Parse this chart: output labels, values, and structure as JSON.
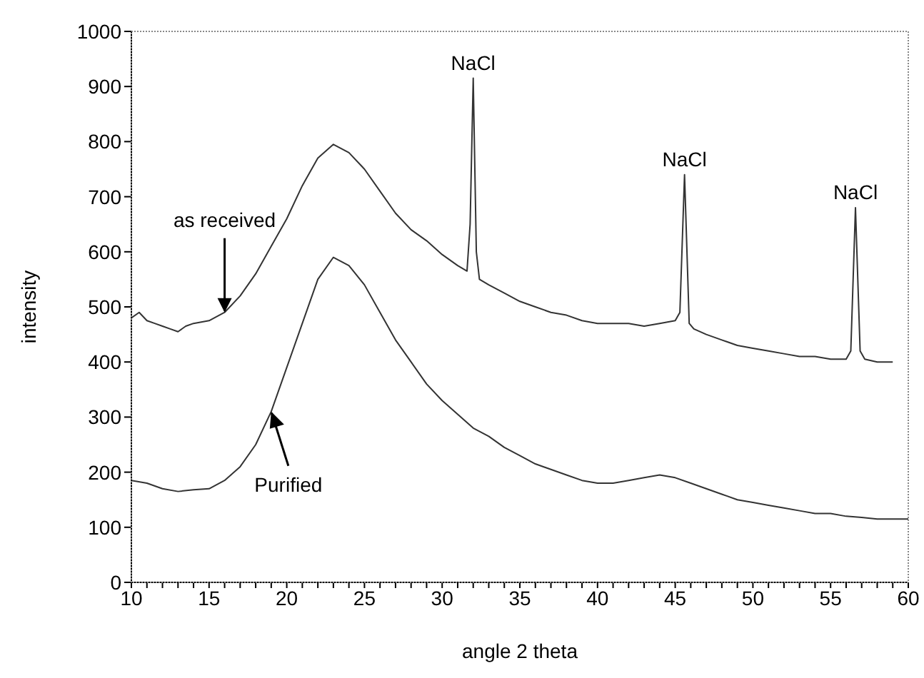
{
  "chart_data": {
    "type": "line",
    "xlabel": "angle 2 theta",
    "ylabel": "intensity",
    "xlim": [
      10,
      60
    ],
    "ylim": [
      0,
      1000
    ],
    "xticks": [
      10,
      {
        "value": 11,
        "label": null
      },
      {
        "value": 12,
        "label": null
      },
      {
        "value": 13,
        "label": null
      },
      {
        "value": 14,
        "label": null
      },
      15,
      {
        "value": 16,
        "label": null
      },
      {
        "value": 17,
        "label": null
      },
      {
        "value": 18,
        "label": null
      },
      {
        "value": 19,
        "label": null
      },
      20,
      {
        "value": 21,
        "label": null
      },
      {
        "value": 22,
        "label": null
      },
      {
        "value": 23,
        "label": null
      },
      {
        "value": 24,
        "label": null
      },
      25,
      {
        "value": 26,
        "label": null
      },
      {
        "value": 27,
        "label": null
      },
      {
        "value": 28,
        "label": null
      },
      {
        "value": 29,
        "label": null
      },
      30,
      {
        "value": 31,
        "label": null
      },
      {
        "value": 32,
        "label": null
      },
      {
        "value": 33,
        "label": null
      },
      {
        "value": 34,
        "label": null
      },
      35,
      {
        "value": 36,
        "label": null
      },
      {
        "value": 37,
        "label": null
      },
      {
        "value": 38,
        "label": null
      },
      {
        "value": 39,
        "label": null
      },
      40,
      {
        "value": 41,
        "label": null
      },
      {
        "value": 42,
        "label": null
      },
      {
        "value": 43,
        "label": null
      },
      {
        "value": 44,
        "label": null
      },
      45,
      {
        "value": 46,
        "label": null
      },
      {
        "value": 47,
        "label": null
      },
      {
        "value": 48,
        "label": null
      },
      {
        "value": 49,
        "label": null
      },
      50,
      {
        "value": 51,
        "label": null
      },
      {
        "value": 52,
        "label": null
      },
      {
        "value": 53,
        "label": null
      },
      {
        "value": 54,
        "label": null
      },
      55,
      {
        "value": 56,
        "label": null
      },
      {
        "value": 57,
        "label": null
      },
      {
        "value": 58,
        "label": null
      },
      {
        "value": 59,
        "label": null
      },
      60
    ],
    "yticks": [
      0,
      100,
      200,
      300,
      400,
      500,
      600,
      700,
      800,
      900,
      1000
    ],
    "series": [
      {
        "color": "#333333",
        "x": [
          10,
          10.5,
          11,
          11.5,
          12,
          12.5,
          13,
          13.5,
          14,
          15,
          16,
          17,
          18,
          19,
          20,
          21,
          22,
          23,
          24,
          25,
          26,
          27,
          28,
          29,
          30,
          31,
          31.6,
          31.8,
          32,
          32.2,
          32.4,
          33,
          34,
          35,
          36,
          37,
          38,
          39,
          40,
          41,
          42,
          43,
          44,
          45,
          45.3,
          45.6,
          45.9,
          46.2,
          47,
          48,
          49,
          50,
          51,
          52,
          53,
          54,
          55,
          56,
          56.3,
          56.6,
          56.9,
          57.2,
          58,
          59
        ],
        "values": [
          480,
          490,
          475,
          470,
          465,
          460,
          455,
          465,
          470,
          475,
          490,
          520,
          560,
          610,
          660,
          720,
          770,
          795,
          780,
          750,
          710,
          670,
          640,
          620,
          595,
          575,
          565,
          650,
          915,
          600,
          550,
          540,
          525,
          510,
          500,
          490,
          485,
          475,
          470,
          470,
          470,
          465,
          470,
          475,
          490,
          740,
          470,
          460,
          450,
          440,
          430,
          425,
          420,
          415,
          410,
          410,
          405,
          405,
          420,
          680,
          420,
          405,
          400,
          400
        ]
      },
      {
        "color": "#333333",
        "x": [
          10,
          11,
          12,
          13,
          14,
          15,
          16,
          17,
          18,
          19,
          20,
          21,
          22,
          23,
          24,
          25,
          26,
          27,
          28,
          29,
          30,
          31,
          32,
          33,
          34,
          35,
          36,
          37,
          38,
          39,
          40,
          41,
          42,
          43,
          44,
          45,
          46,
          47,
          48,
          49,
          50,
          51,
          52,
          53,
          54,
          55,
          56,
          57,
          58,
          59,
          60
        ],
        "values": [
          185,
          180,
          170,
          165,
          168,
          170,
          185,
          210,
          250,
          310,
          390,
          470,
          550,
          590,
          575,
          540,
          490,
          440,
          400,
          360,
          330,
          305,
          280,
          265,
          245,
          230,
          215,
          205,
          195,
          185,
          180,
          180,
          185,
          190,
          195,
          190,
          180,
          170,
          160,
          150,
          145,
          140,
          135,
          130,
          125,
          125,
          120,
          118,
          115,
          115,
          115
        ]
      }
    ],
    "annotations": [
      {
        "text": "NaCl",
        "x": 32,
        "y": 915
      },
      {
        "text": "NaCl",
        "x": 45.6,
        "y": 740
      },
      {
        "text": "NaCl",
        "x": 56.6,
        "y": 680
      },
      {
        "text": "as received",
        "x": 16,
        "y": 490
      },
      {
        "text": "Purified",
        "x": 19,
        "y": 310
      }
    ]
  }
}
